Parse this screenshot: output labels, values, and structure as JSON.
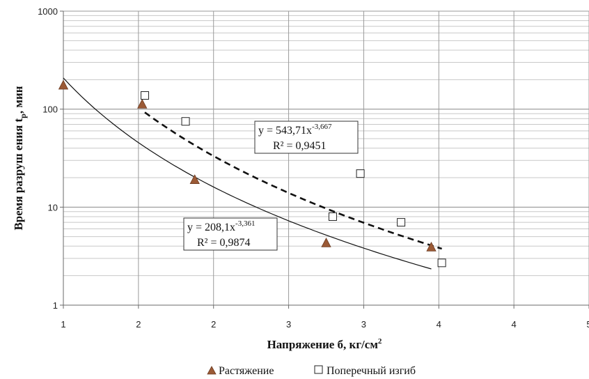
{
  "chart_data": {
    "type": "scatter",
    "xlabel": "Напряжение",
    "xlabel_symbol": "б,",
    "xlabel_unit": "кг/см",
    "xlabel_unit_sup": "2",
    "ylabel": "Время разруш ения t",
    "ylabel_sub": "p",
    "ylabel_unit": ", мин",
    "y_scale": "log",
    "ylim": [
      1,
      1000
    ],
    "xlim": [
      1,
      5
    ],
    "x_tick_labels": [
      "1",
      "2",
      "2",
      "3",
      "3",
      "4",
      "4",
      "5"
    ],
    "y_tick_labels": [
      "1",
      "10",
      "100",
      "1000"
    ],
    "grid": true,
    "legend_position": "bottom",
    "series": [
      {
        "name": "Растяжение",
        "marker": "triangle",
        "color": "#9b5a36",
        "x": [
          1.0,
          1.6,
          2.0,
          3.0,
          3.8
        ],
        "y": [
          175,
          112,
          19,
          4.3,
          3.9
        ]
      },
      {
        "name": "Поперечный изгиб",
        "marker": "square",
        "color": "#ffffff",
        "x": [
          1.62,
          1.93,
          3.26,
          3.05,
          3.57,
          3.88
        ],
        "y": [
          138,
          75,
          22,
          8,
          7,
          2.7
        ]
      }
    ],
    "trendlines": [
      {
        "series": "Растяжение",
        "style": "solid",
        "coef": 208.1,
        "exp": -3.361,
        "x_range": [
          1.0,
          3.8
        ],
        "eq_prefix": "y = 208,1x",
        "eq_exp": "-3,361",
        "r2_text": "R² = 0,9874"
      },
      {
        "series": "Поперечный изгиб",
        "style": "dashed",
        "coef": 543.71,
        "exp": -3.667,
        "x_range": [
          1.62,
          3.88
        ],
        "eq_prefix": "y = 543,71x",
        "eq_exp": "-3,667",
        "r2_text": "R² = 0,9451"
      }
    ]
  }
}
